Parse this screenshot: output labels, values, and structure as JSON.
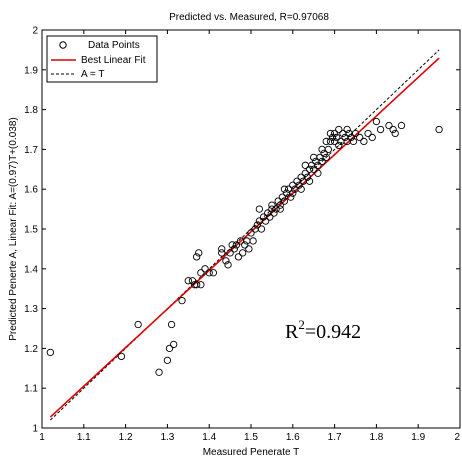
{
  "chart_data": {
    "type": "scatter",
    "title": "Predicted vs. Measured, R=0.97068",
    "xlabel": "Measured Penerate T",
    "ylabel": "Predicted Penerte A,  Linear Fit: A=(0.97)T+(0.038)",
    "xlim": [
      1,
      2
    ],
    "ylim": [
      1,
      2
    ],
    "xticks": [
      "1",
      "1.1",
      "1.2",
      "1.3",
      "1.4",
      "1.5",
      "1.6",
      "1.7",
      "1.8",
      "1.9",
      "2"
    ],
    "yticks": [
      "1",
      "1.1",
      "1.2",
      "1.3",
      "1.4",
      "1.5",
      "1.6",
      "1.7",
      "1.8",
      "1.9",
      "2"
    ],
    "grid": false,
    "legend": {
      "placement": "top-left",
      "entries": [
        "Data Points",
        "Best Linear Fit",
        "A = T"
      ]
    },
    "annotation": {
      "base": "R",
      "sup": "2",
      "rest": "=0.942"
    },
    "colors": {
      "points": "#000000",
      "fit": "#e00000",
      "identity": "#000000"
    },
    "series": [
      {
        "name": "Data Points",
        "points": [
          [
            1.02,
            1.19
          ],
          [
            1.19,
            1.18
          ],
          [
            1.23,
            1.26
          ],
          [
            1.28,
            1.14
          ],
          [
            1.3,
            1.17
          ],
          [
            1.305,
            1.2
          ],
          [
            1.315,
            1.21
          ],
          [
            1.31,
            1.26
          ],
          [
            1.335,
            1.32
          ],
          [
            1.35,
            1.37
          ],
          [
            1.36,
            1.37
          ],
          [
            1.365,
            1.36
          ],
          [
            1.37,
            1.36
          ],
          [
            1.38,
            1.36
          ],
          [
            1.37,
            1.43
          ],
          [
            1.375,
            1.44
          ],
          [
            1.38,
            1.39
          ],
          [
            1.39,
            1.4
          ],
          [
            1.4,
            1.39
          ],
          [
            1.41,
            1.39
          ],
          [
            1.43,
            1.45
          ],
          [
            1.44,
            1.42
          ],
          [
            1.445,
            1.41
          ],
          [
            1.45,
            1.44
          ],
          [
            1.455,
            1.46
          ],
          [
            1.46,
            1.45
          ],
          [
            1.465,
            1.46
          ],
          [
            1.47,
            1.43
          ],
          [
            1.475,
            1.47
          ],
          [
            1.48,
            1.44
          ],
          [
            1.485,
            1.46
          ],
          [
            1.49,
            1.47
          ],
          [
            1.495,
            1.45
          ],
          [
            1.5,
            1.49
          ],
          [
            1.505,
            1.47
          ],
          [
            1.51,
            1.5
          ],
          [
            1.515,
            1.51
          ],
          [
            1.52,
            1.52
          ],
          [
            1.525,
            1.5
          ],
          [
            1.53,
            1.53
          ],
          [
            1.535,
            1.52
          ],
          [
            1.54,
            1.54
          ],
          [
            1.545,
            1.53
          ],
          [
            1.55,
            1.55
          ],
          [
            1.555,
            1.54
          ],
          [
            1.56,
            1.55
          ],
          [
            1.565,
            1.57
          ],
          [
            1.57,
            1.56
          ],
          [
            1.575,
            1.58
          ],
          [
            1.58,
            1.57
          ],
          [
            1.585,
            1.59
          ],
          [
            1.59,
            1.6
          ],
          [
            1.595,
            1.58
          ],
          [
            1.6,
            1.61
          ],
          [
            1.605,
            1.6
          ],
          [
            1.61,
            1.62
          ],
          [
            1.615,
            1.61
          ],
          [
            1.62,
            1.63
          ],
          [
            1.625,
            1.62
          ],
          [
            1.63,
            1.64
          ],
          [
            1.635,
            1.63
          ],
          [
            1.64,
            1.65
          ],
          [
            1.645,
            1.66
          ],
          [
            1.65,
            1.65
          ],
          [
            1.655,
            1.67
          ],
          [
            1.66,
            1.66
          ],
          [
            1.665,
            1.68
          ],
          [
            1.67,
            1.67
          ],
          [
            1.675,
            1.69
          ],
          [
            1.68,
            1.68
          ],
          [
            1.685,
            1.7
          ],
          [
            1.69,
            1.72
          ],
          [
            1.695,
            1.73
          ],
          [
            1.7,
            1.72
          ],
          [
            1.7,
            1.74
          ],
          [
            1.705,
            1.73
          ],
          [
            1.71,
            1.71
          ],
          [
            1.715,
            1.72
          ],
          [
            1.72,
            1.74
          ],
          [
            1.725,
            1.73
          ],
          [
            1.73,
            1.72
          ],
          [
            1.735,
            1.74
          ],
          [
            1.74,
            1.73
          ],
          [
            1.745,
            1.72
          ],
          [
            1.75,
            1.74
          ],
          [
            1.76,
            1.73
          ],
          [
            1.77,
            1.72
          ],
          [
            1.78,
            1.74
          ],
          [
            1.79,
            1.73
          ],
          [
            1.8,
            1.77
          ],
          [
            1.81,
            1.75
          ],
          [
            1.83,
            1.76
          ],
          [
            1.84,
            1.75
          ],
          [
            1.845,
            1.74
          ],
          [
            1.86,
            1.76
          ],
          [
            1.95,
            1.75
          ],
          [
            1.43,
            1.44
          ],
          [
            1.55,
            1.56
          ],
          [
            1.6,
            1.59
          ],
          [
            1.62,
            1.6
          ],
          [
            1.64,
            1.62
          ],
          [
            1.66,
            1.64
          ],
          [
            1.67,
            1.7
          ],
          [
            1.68,
            1.72
          ],
          [
            1.69,
            1.74
          ],
          [
            1.71,
            1.75
          ],
          [
            1.73,
            1.75
          ],
          [
            1.57,
            1.55
          ],
          [
            1.58,
            1.6
          ],
          [
            1.63,
            1.66
          ],
          [
            1.65,
            1.68
          ],
          [
            1.52,
            1.55
          ]
        ]
      }
    ],
    "fit_line": {
      "slope": 0.97,
      "intercept": 0.038,
      "x": [
        1.02,
        1.95
      ]
    },
    "identity_line": {
      "x": [
        1.02,
        1.95
      ]
    }
  }
}
